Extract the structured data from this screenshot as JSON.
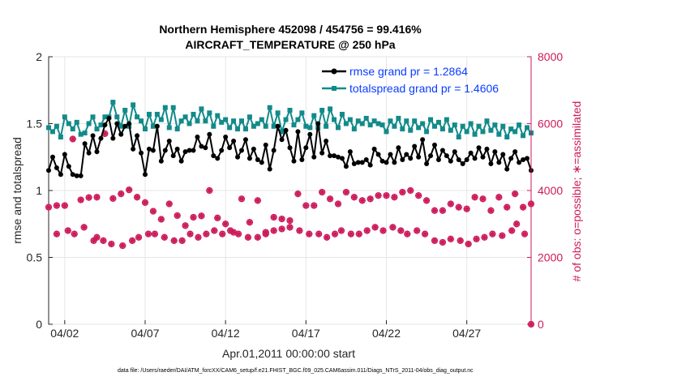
{
  "chart_data": {
    "type": "line",
    "title": "Northern Hemisphere 452098 / 454756 = 99.416%",
    "subtitle": "AIRCRAFT_TEMPERATURE @ 250 hPa",
    "xlabel": "Apr.01,2011 00:00:00 start",
    "ylabel": "rmse and totalspread",
    "y2label": "# of obs: o=possible; ∗=assimilated",
    "footer": "data file: /Users/raeder/DAI/ATM_forcXX/CAM6_setup/f.e21.FHIST_BGC.f09_025.CAM6assim.011/Diags_NTrS_2011-04/obs_diag_output.nc",
    "x_tick_labels": [
      "04/02",
      "04/07",
      "04/12",
      "04/17",
      "04/22",
      "04/27"
    ],
    "x_tick_days": [
      2,
      7,
      12,
      17,
      22,
      27
    ],
    "xlim": [
      1.0,
      31.0
    ],
    "ylim": [
      0,
      2
    ],
    "y_ticks": [
      "0",
      "0.5",
      "1",
      "1.5",
      "2"
    ],
    "y2lim": [
      0,
      8000
    ],
    "y2_ticks": [
      "0",
      "2000",
      "4000",
      "6000",
      "8000"
    ],
    "grid": true,
    "legend_position": "top-right",
    "colors": {
      "rmse": "#000000",
      "spread": "#138a8a",
      "obs": "#cc1a5a",
      "legend_text": "#0a3cff"
    },
    "series": [
      {
        "name": "rmse grand pr = 1.2864",
        "axis": "left",
        "x_start": 1.0,
        "x_step": 0.25,
        "values": [
          1.15,
          1.25,
          1.17,
          1.12,
          1.27,
          1.18,
          1.12,
          1.11,
          1.11,
          1.35,
          1.28,
          1.41,
          1.29,
          1.39,
          1.49,
          1.54,
          1.39,
          1.5,
          1.42,
          1.48,
          1.5,
          1.31,
          1.41,
          1.28,
          1.12,
          1.31,
          1.3,
          1.48,
          1.22,
          1.3,
          1.37,
          1.26,
          1.31,
          1.22,
          1.29,
          1.3,
          1.3,
          1.4,
          1.33,
          1.32,
          1.42,
          1.26,
          1.24,
          1.3,
          1.4,
          1.32,
          1.37,
          1.25,
          1.3,
          1.38,
          1.24,
          1.31,
          1.23,
          1.21,
          1.34,
          1.16,
          1.3,
          1.48,
          1.38,
          1.45,
          1.32,
          1.22,
          1.44,
          1.23,
          1.32,
          1.42,
          1.25,
          1.5,
          1.28,
          1.37,
          1.26,
          1.26,
          1.25,
          1.24,
          1.18,
          1.29,
          1.2,
          1.21,
          1.21,
          1.23,
          1.19,
          1.31,
          1.27,
          1.22,
          1.21,
          1.27,
          1.21,
          1.32,
          1.23,
          1.27,
          1.24,
          1.33,
          1.25,
          1.38,
          1.2,
          1.26,
          1.34,
          1.23,
          1.3,
          1.26,
          1.22,
          1.29,
          1.23,
          1.2,
          1.23,
          1.28,
          1.24,
          1.32,
          1.25,
          1.31,
          1.2,
          1.29,
          1.21,
          1.27,
          1.16,
          1.24,
          1.29,
          1.21,
          1.23,
          1.24,
          1.15,
          1.18,
          1.25,
          1.2,
          1.24,
          1.17,
          1.22,
          1.25,
          1.21,
          1.27,
          1.24,
          1.19,
          1.25,
          1.3,
          1.23,
          1.24,
          1.22,
          1.26,
          1.11,
          1.22,
          1.23,
          1.25,
          1.23,
          1.19,
          1.23,
          1.27,
          1.11,
          1.24,
          1.24,
          1.26,
          1.2,
          1.24,
          1.22,
          1.26,
          1.14,
          1.21,
          1.24,
          1.31,
          1.17,
          1.19,
          1.25,
          1.15,
          1.15,
          1.22,
          1.17,
          1.25,
          1.22,
          1.23,
          1.25,
          1.2,
          1.19,
          1.24,
          1.13,
          1.11,
          1.15,
          1.24,
          1.21,
          1.16,
          1.25,
          1.2,
          1.17,
          1.22,
          1.18,
          1.23,
          1.17,
          1.26,
          1.24,
          1.2,
          1.25,
          1.19,
          1.15,
          1.22,
          1.2,
          1.24,
          1.2,
          1.17,
          1.22,
          1.23,
          1.11,
          1.24,
          1.22,
          1.15,
          1.21,
          1.12,
          1.2,
          1.18,
          1.24,
          1.21,
          1.17,
          1.24,
          1.19,
          1.23,
          1.12,
          1.2,
          1.23,
          1.18,
          1.2,
          1.14,
          1.22,
          1.24,
          1.16,
          1.21,
          1.13,
          1.21,
          1.25,
          1.2,
          1.11,
          1.21,
          1.19,
          1.24,
          1.12,
          1.18,
          1.24,
          1.19,
          1.16,
          1.23,
          1.24,
          1.21,
          1.11,
          1.23,
          1.2,
          1.14,
          1.21,
          1.12,
          1.22,
          1.23,
          1.11,
          1.15,
          1.21,
          1.18,
          1.11,
          1.23,
          1.2,
          1.19,
          1.11,
          1.2,
          1.22,
          1.11,
          1.23,
          1.21,
          1.16,
          1.11
        ]
      },
      {
        "name": "totalspread grand pr = 1.4606",
        "axis": "left",
        "x_start": 1.0,
        "x_step": 0.25,
        "values": [
          1.47,
          1.44,
          1.48,
          1.4,
          1.55,
          1.5,
          1.46,
          1.51,
          1.42,
          1.43,
          1.5,
          1.55,
          1.46,
          1.49,
          1.55,
          1.55,
          1.66,
          1.55,
          1.48,
          1.6,
          1.48,
          1.64,
          1.55,
          1.52,
          1.46,
          1.57,
          1.48,
          1.57,
          1.53,
          1.62,
          1.47,
          1.62,
          1.46,
          1.52,
          1.55,
          1.5,
          1.57,
          1.52,
          1.61,
          1.52,
          1.58,
          1.48,
          1.56,
          1.51,
          1.53,
          1.47,
          1.52,
          1.46,
          1.52,
          1.46,
          1.55,
          1.48,
          1.5,
          1.53,
          1.48,
          1.62,
          1.48,
          1.58,
          1.44,
          1.53,
          1.6,
          1.49,
          1.53,
          1.58,
          1.48,
          1.47,
          1.56,
          1.47,
          1.6,
          1.48,
          1.61,
          1.53,
          1.47,
          1.57,
          1.5,
          1.53,
          1.46,
          1.52,
          1.5,
          1.54,
          1.49,
          1.52,
          1.5,
          1.49,
          1.44,
          1.52,
          1.48,
          1.54,
          1.46,
          1.52,
          1.45,
          1.52,
          1.47,
          1.5,
          1.44,
          1.53,
          1.48,
          1.51,
          1.46,
          1.53,
          1.45,
          1.49,
          1.4,
          1.48,
          1.44,
          1.5,
          1.42,
          1.48,
          1.44,
          1.52,
          1.45,
          1.49,
          1.42,
          1.48,
          1.4,
          1.46,
          1.44,
          1.49,
          1.41,
          1.47,
          1.43,
          1.5,
          1.42,
          1.47,
          1.4,
          1.45,
          1.42,
          1.48,
          1.43,
          1.47,
          1.4,
          1.45,
          1.42,
          1.46,
          1.41,
          1.44,
          1.4,
          1.47,
          1.42,
          1.49,
          1.42,
          1.46,
          1.38,
          1.45,
          1.4,
          1.46,
          1.41,
          1.47,
          1.39,
          1.44,
          1.41,
          1.46,
          1.4,
          1.43,
          1.42,
          1.45,
          1.39,
          1.44,
          1.4,
          1.47,
          1.42,
          1.45,
          1.4,
          1.46,
          1.39,
          1.44,
          1.41,
          1.45,
          1.4,
          1.43,
          1.41,
          1.46,
          1.39,
          1.43,
          1.4,
          1.45,
          1.4,
          1.42,
          1.38,
          1.44,
          1.4,
          1.45,
          1.39,
          1.43,
          1.4,
          1.45,
          1.4,
          1.42,
          1.38,
          1.44,
          1.4,
          1.46,
          1.4,
          1.43,
          1.39,
          1.45,
          1.4,
          1.43,
          1.39,
          1.44,
          1.4,
          1.42,
          1.38,
          1.44,
          1.39,
          1.45,
          1.4,
          1.42,
          1.39,
          1.44,
          1.4,
          1.42,
          1.37,
          1.43,
          1.39,
          1.44,
          1.38,
          1.42,
          1.39,
          1.44,
          1.39,
          1.41,
          1.37,
          1.43,
          1.4,
          1.44,
          1.38,
          1.42,
          1.39,
          1.43,
          1.38,
          1.41,
          1.36,
          1.43,
          1.39,
          1.44,
          1.38,
          1.42,
          1.39,
          1.45,
          1.38,
          1.41,
          1.37,
          1.43,
          1.39,
          1.44,
          1.38,
          1.41,
          1.39,
          1.43,
          1.38,
          1.3
        ]
      },
      {
        "name": "possible",
        "axis": "right",
        "x_start": 1.0,
        "x_step": 0.5,
        "values": [
          3500,
          3550,
          3550,
          5540,
          3720,
          3790,
          3800,
          5700,
          3760,
          3900,
          4020,
          3800,
          3640,
          3380,
          3140,
          3600,
          3250,
          2950,
          3200,
          3240,
          4000,
          3180,
          3000,
          2750,
          3750,
          3050,
          3700,
          2750,
          3200,
          3150,
          3100,
          3900,
          3550,
          3550,
          3950,
          3750,
          3600,
          3950,
          3800,
          3700,
          3750,
          3850,
          3850,
          3800,
          3950,
          4000,
          3850,
          3700,
          3400,
          3400,
          3600,
          3500,
          3450,
          3800,
          3750,
          3400,
          3800,
          3500,
          3900,
          3500,
          3600,
          3700,
          3750
        ]
      },
      {
        "name": "assimilated",
        "axis": "right",
        "x_start": 1.0,
        "x_step": 0.5,
        "values": [
          3500,
          3550,
          3550,
          5540,
          3720,
          3790,
          3800,
          5700,
          3760,
          3900,
          4020,
          3800,
          3640,
          3380,
          3140,
          3600,
          3250,
          2950,
          3200,
          3240,
          4000,
          3180,
          3000,
          2750,
          3750,
          3050,
          3700,
          2750,
          3200,
          3150,
          3100,
          3900,
          3550,
          3550,
          3950,
          3750,
          3600,
          3950,
          3800,
          3700,
          3750,
          3850,
          3850,
          3800,
          3950,
          4000,
          3850,
          3700,
          3400,
          3400,
          3600,
          3500,
          3450,
          3800,
          3750,
          3400,
          3800,
          3500,
          3900,
          3500,
          3600,
          3700,
          3750
        ]
      }
    ],
    "obs_extra": {
      "x_days": [
        1.5,
        2.2,
        2.6,
        3.2,
        3.8,
        4.0,
        4.4,
        4.9,
        5.6,
        6.2,
        6.6,
        7.2,
        7.6,
        8.2,
        8.8,
        9.3,
        9.8,
        10.3,
        10.8,
        11.3,
        11.8,
        12.3,
        12.8,
        13.4,
        14.0,
        14.5,
        15.0,
        15.5,
        16.0,
        16.6,
        17.2,
        17.8,
        18.3,
        18.8,
        19.2,
        19.8,
        20.3,
        20.8,
        21.3,
        21.8,
        22.4,
        22.9,
        23.3,
        23.9,
        24.4,
        25.0,
        25.5,
        26.0,
        26.6,
        27.1,
        27.6,
        28.1,
        28.6,
        29.2,
        29.8,
        30.1,
        30.6,
        31.0
      ],
      "values": [
        2700,
        2800,
        2700,
        2900,
        2500,
        2600,
        2500,
        2400,
        2350,
        2500,
        2600,
        2700,
        2700,
        2600,
        2500,
        2500,
        2700,
        2600,
        2700,
        2800,
        2700,
        2800,
        2700,
        2600,
        2600,
        2700,
        2800,
        2850,
        2900,
        2800,
        2700,
        2700,
        2600,
        2700,
        2800,
        2700,
        2700,
        2800,
        2900,
        2800,
        2900,
        2800,
        2700,
        2800,
        2700,
        2500,
        2450,
        2550,
        2500,
        2400,
        2550,
        2600,
        2700,
        2650,
        2800,
        3000,
        2700,
        0
      ]
    }
  }
}
